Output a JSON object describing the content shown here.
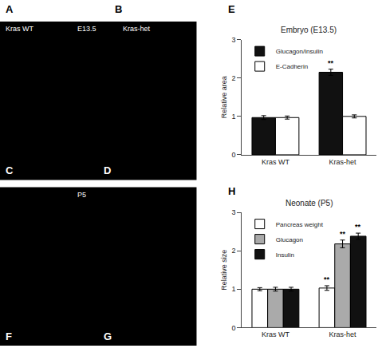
{
  "chart_data": [
    {
      "type": "bar",
      "title": "Embryo (E13.5)",
      "ylabel": "Relative area",
      "categories": [
        "Kras WT",
        "Kras-het"
      ],
      "series": [
        {
          "name": "Glucagon/insulin",
          "color": "#111111",
          "values": [
            0.97,
            2.15
          ],
          "errors": [
            0.05,
            0.08
          ]
        },
        {
          "name": "E-Cadherin",
          "color": "#ffffff",
          "values": [
            0.97,
            1.0
          ],
          "errors": [
            0.04,
            0.04
          ]
        }
      ],
      "ylim": [
        0,
        3
      ],
      "yticks": [
        0,
        1,
        2,
        3
      ],
      "grid": false,
      "legend": "upper left",
      "annotations": [
        {
          "text": "**",
          "category": "Kras-het",
          "series": "Glucagon/insulin"
        }
      ]
    },
    {
      "type": "bar",
      "title": "Neonate (P5)",
      "ylabel": "Relative size",
      "categories": [
        "Kras WT",
        "Kras-het"
      ],
      "series": [
        {
          "name": "Pancreas weight",
          "color": "#ffffff",
          "values": [
            1.0,
            1.03
          ],
          "errors": [
            0.04,
            0.06
          ]
        },
        {
          "name": "Glucagon",
          "color": "#aaaaaa",
          "values": [
            1.0,
            2.18
          ],
          "errors": [
            0.05,
            0.1
          ]
        },
        {
          "name": "Insulin",
          "color": "#111111",
          "values": [
            1.0,
            2.38
          ],
          "errors": [
            0.05,
            0.08
          ]
        }
      ],
      "ylim": [
        0,
        3
      ],
      "yticks": [
        0,
        1,
        2,
        3
      ],
      "grid": false,
      "legend": "upper left",
      "annotations": [
        {
          "text": "**",
          "category": "Kras-het",
          "series": "Pancreas weight"
        },
        {
          "text": "**",
          "category": "Kras-het",
          "series": "Glucagon"
        },
        {
          "text": "**",
          "category": "Kras-het",
          "series": "Insulin"
        }
      ]
    }
  ],
  "annotations": [
    {
      "text": "A"
    },
    {
      "text": "B"
    },
    {
      "text": "C"
    },
    {
      "text": "D"
    },
    {
      "text": "E"
    },
    {
      "text": "F"
    },
    {
      "text": "G"
    },
    {
      "text": "H"
    },
    {
      "text": "Kras WT"
    },
    {
      "text": "E13.5"
    },
    {
      "text": "Kras-het"
    },
    {
      "text": "P5"
    }
  ]
}
